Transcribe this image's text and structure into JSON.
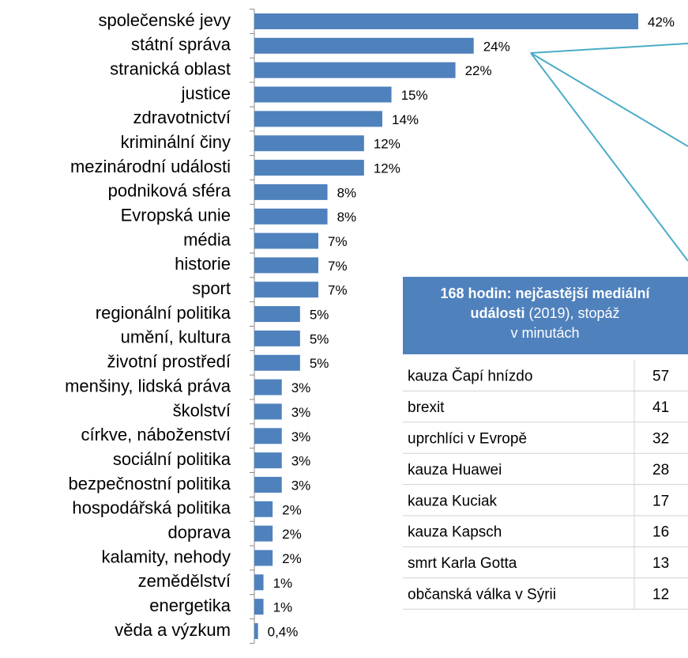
{
  "chart_data": {
    "type": "bar",
    "orientation": "horizontal",
    "color": "#4f81bd",
    "categories": [
      "společenské jevy",
      "státní správa",
      "stranická oblast",
      "justice",
      "zdravotnictví",
      "kriminální činy",
      "mezinárodní události",
      "podniková sféra",
      "Evropská unie",
      "média",
      "historie",
      "sport",
      "regionální politika",
      "umění, kultura",
      "životní prostředí",
      "menšiny, lidská práva",
      "školství",
      "církve, náboženství",
      "sociální politika",
      "bezpečnostní politika",
      "hospodářská politika",
      "doprava",
      "kalamity, nehody",
      "zemědělství",
      "energetika",
      "věda a výzkum"
    ],
    "values": [
      42,
      24,
      22,
      15,
      14,
      12,
      12,
      8,
      8,
      7,
      7,
      7,
      5,
      5,
      5,
      3,
      3,
      3,
      3,
      3,
      2,
      2,
      2,
      1,
      1,
      0.4
    ],
    "value_labels": [
      "42%",
      "24%",
      "22%",
      "15%",
      "14%",
      "12%",
      "12%",
      "8%",
      "8%",
      "7%",
      "7%",
      "7%",
      "5%",
      "5%",
      "5%",
      "3%",
      "3%",
      "3%",
      "3%",
      "3%",
      "2%",
      "2%",
      "2%",
      "1%",
      "1%",
      "0,4%"
    ]
  },
  "table": {
    "title_bold": "168 hodin: nejčastější mediální události",
    "title_rest": " (2019), stopáž v minutách",
    "rows": [
      [
        "kauza Čapí hnízdo",
        "57"
      ],
      [
        "brexit",
        "41"
      ],
      [
        "uprchlíci v Evropě",
        "32"
      ],
      [
        "kauza Huawei",
        "28"
      ],
      [
        "kauza Kuciak",
        "17"
      ],
      [
        "kauza Kapsch",
        "16"
      ],
      [
        "smrt Karla Gotta",
        "13"
      ],
      [
        "občanská válka v Sýrii",
        "12"
      ]
    ]
  }
}
